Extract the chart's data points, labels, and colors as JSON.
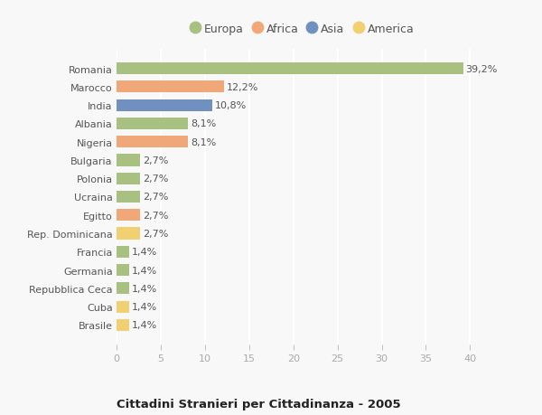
{
  "categories": [
    "Romania",
    "Marocco",
    "India",
    "Albania",
    "Nigeria",
    "Bulgaria",
    "Polonia",
    "Ucraina",
    "Egitto",
    "Rep. Dominicana",
    "Francia",
    "Germania",
    "Repubblica Ceca",
    "Cuba",
    "Brasile"
  ],
  "values": [
    39.2,
    12.2,
    10.8,
    8.1,
    8.1,
    2.7,
    2.7,
    2.7,
    2.7,
    2.7,
    1.4,
    1.4,
    1.4,
    1.4,
    1.4
  ],
  "labels": [
    "39,2%",
    "12,2%",
    "10,8%",
    "8,1%",
    "8,1%",
    "2,7%",
    "2,7%",
    "2,7%",
    "2,7%",
    "2,7%",
    "1,4%",
    "1,4%",
    "1,4%",
    "1,4%",
    "1,4%"
  ],
  "colors": [
    "#a8c080",
    "#f0a878",
    "#7090c0",
    "#a8c080",
    "#f0a878",
    "#a8c080",
    "#a8c080",
    "#a8c080",
    "#f0a878",
    "#f0d070",
    "#a8c080",
    "#a8c080",
    "#a8c080",
    "#f0d070",
    "#f0d070"
  ],
  "continent_colors": {
    "Europa": "#a8c080",
    "Africa": "#f0a878",
    "Asia": "#7090c0",
    "America": "#f0d070"
  },
  "legend_labels": [
    "Europa",
    "Africa",
    "Asia",
    "America"
  ],
  "xlim": [
    0,
    42
  ],
  "xticks": [
    0,
    5,
    10,
    15,
    20,
    25,
    30,
    35,
    40
  ],
  "title": "Cittadini Stranieri per Cittadinanza - 2005",
  "bg_color": "#f8f8f8",
  "bar_height": 0.65,
  "grid_color": "#ffffff",
  "label_fontsize": 8.0,
  "value_fontsize": 8.0,
  "tick_color": "#aaaaaa"
}
